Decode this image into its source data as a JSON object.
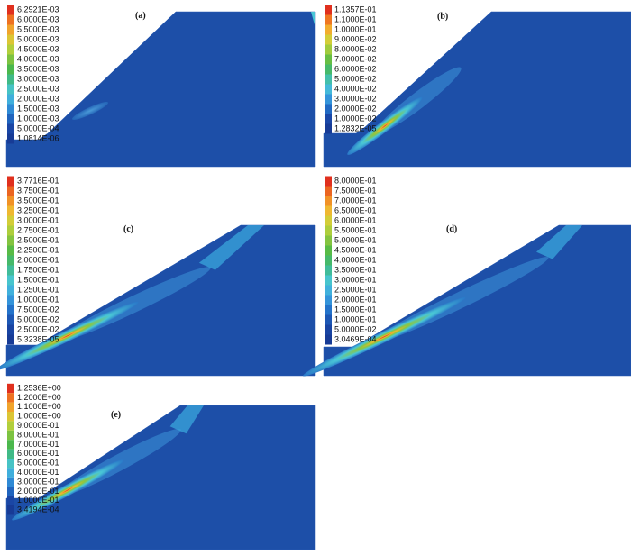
{
  "panels": [
    {
      "label": "(a)",
      "legend": [
        "6.2921E-03",
        "6.0000E-03",
        "5.5000E-03",
        "5.0000E-03",
        "4.5000E-03",
        "4.0000E-03",
        "3.5000E-03",
        "3.0000E-03",
        "2.5000E-03",
        "2.0000E-03",
        "1.5000E-03",
        "1.0000E-03",
        "5.0000E-04",
        "1.0814E-06"
      ]
    },
    {
      "label": "(b)",
      "legend": [
        "1.1357E-01",
        "1.1000E-01",
        "1.0000E-01",
        "9.0000E-02",
        "8.0000E-02",
        "7.0000E-02",
        "6.0000E-02",
        "5.0000E-02",
        "4.0000E-02",
        "3.0000E-02",
        "2.0000E-02",
        "1.0000E-02",
        "1.2832E-05"
      ]
    },
    {
      "label": "(c)",
      "legend": [
        "3.7716E-01",
        "3.7500E-01",
        "3.5000E-01",
        "3.2500E-01",
        "3.0000E-01",
        "2.7500E-01",
        "2.5000E-01",
        "2.2500E-01",
        "2.0000E-01",
        "1.7500E-01",
        "1.5000E-01",
        "1.2500E-01",
        "1.0000E-01",
        "7.5000E-02",
        "5.0000E-02",
        "2.5000E-02",
        "5.3238E-05"
      ]
    },
    {
      "label": "(d)",
      "legend": [
        "8.0000E-01",
        "7.5000E-01",
        "7.0000E-01",
        "6.5000E-01",
        "6.0000E-01",
        "5.5000E-01",
        "5.0000E-01",
        "4.5000E-01",
        "4.0000E-01",
        "3.5000E-01",
        "3.0000E-01",
        "2.5000E-01",
        "2.0000E-01",
        "1.5000E-01",
        "1.0000E-01",
        "5.0000E-02",
        "3.0469E-04"
      ]
    },
    {
      "label": "(e)",
      "legend": [
        "1.2536E+00",
        "1.2000E+00",
        "1.1000E+00",
        "1.0000E+00",
        "9.0000E-01",
        "8.0000E-01",
        "7.0000E-01",
        "6.0000E-01",
        "5.0000E-01",
        "4.0000E-01",
        "3.0000E-01",
        "2.0000E-01",
        "1.0000E-01",
        "3.4194E-04"
      ]
    }
  ]
}
